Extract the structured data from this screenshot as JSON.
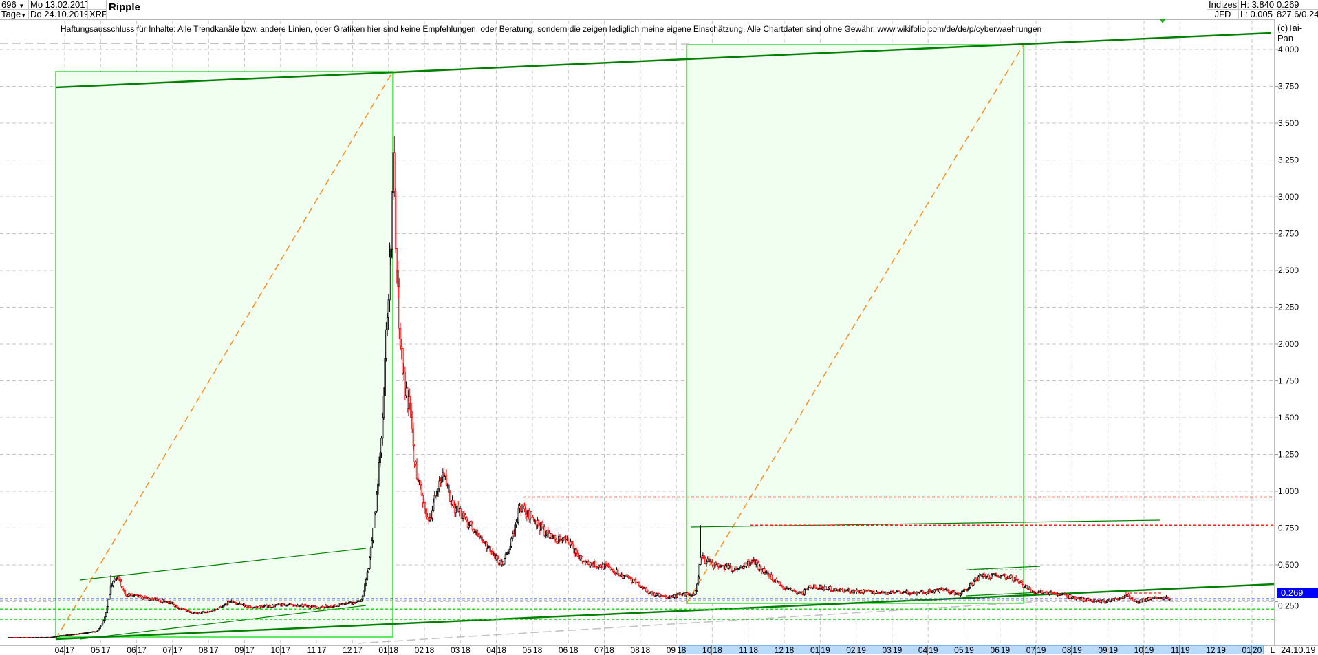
{
  "header": {
    "count": "696",
    "start_date": "Mo 13.02.2017",
    "period": "Tage",
    "end_date": "Do 24.10.2019",
    "symbol": "XRP",
    "title": "Ripple",
    "category": "Indizes",
    "source": "JFD",
    "high": "H: 3.840",
    "low": "L: 0.005",
    "last": "0.269",
    "extra": "827.6/0.24",
    "copyright": "(c)Tai-Pan"
  },
  "disclaimer": "Haftungsausschluss für Inhalte: Alle Trendkanäle bzw. andere Linien, oder Grafiken hier sind keine Empfehlungen, oder Beratung, sondern die zeigen lediglich meine eigene Einschätzung. Alle Chartdaten sind ohne Gewähr.  www.wikifolio.com/de/de/p/cyberwaehrungen",
  "footer": {
    "mode": "L",
    "date": "24.10.19"
  },
  "colors": {
    "up": "#000000",
    "down": "#ff0000",
    "trend": "#008000",
    "box_fill": "#f0fff0",
    "box_border": "#33dd33",
    "projection": "#ff8c1a",
    "resistance": "#ff2020",
    "support": "#22dd22",
    "last_price": "#0000ff"
  },
  "chart_data": {
    "type": "candlestick",
    "title": "Ripple",
    "ylim": [
      0,
      4.1
    ],
    "y_ticks": [
      "0.250",
      "0.500",
      "0.750",
      "1.000",
      "1.250",
      "1.500",
      "1.750",
      "2.000",
      "2.250",
      "2.500",
      "2.750",
      "3.000",
      "3.250",
      "3.500",
      "3.750",
      "4.000"
    ],
    "x_ticks": [
      "04 17",
      "05 17",
      "06 17",
      "07 17",
      "08 17",
      "09 17",
      "10 17",
      "11 17",
      "12 17",
      "01 18",
      "02 18",
      "03 18",
      "04 18",
      "05 18",
      "06 18",
      "07 18",
      "08 18",
      "09 18",
      "10 18",
      "11 18",
      "12 18",
      "01 19",
      "02 19",
      "03 19",
      "04 19",
      "05 19",
      "06 19",
      "07 19",
      "08 19",
      "09 19",
      "10 19",
      "11 19",
      "12 19",
      "01 20"
    ],
    "grid": true,
    "last_value": 0.269,
    "high": 3.84,
    "low": 0.005,
    "series": [
      {
        "date": "2017-02-13",
        "close": 0.007
      },
      {
        "date": "2017-03-20",
        "close": 0.008
      },
      {
        "date": "2017-03-28",
        "close": 0.02
      },
      {
        "date": "2017-04-15",
        "close": 0.035
      },
      {
        "date": "2017-04-28",
        "close": 0.05
      },
      {
        "date": "2017-05-02",
        "close": 0.09
      },
      {
        "date": "2017-05-10",
        "close": 0.36,
        "high": 0.43
      },
      {
        "date": "2017-05-16",
        "close": 0.42
      },
      {
        "date": "2017-05-22",
        "close": 0.3
      },
      {
        "date": "2017-06-05",
        "close": 0.28
      },
      {
        "date": "2017-06-27",
        "close": 0.25
      },
      {
        "date": "2017-07-18",
        "close": 0.17
      },
      {
        "date": "2017-08-01",
        "close": 0.18
      },
      {
        "date": "2017-08-19",
        "close": 0.25
      },
      {
        "date": "2017-09-06",
        "close": 0.21
      },
      {
        "date": "2017-10-07",
        "close": 0.23
      },
      {
        "date": "2017-11-02",
        "close": 0.21
      },
      {
        "date": "2017-11-27",
        "close": 0.24
      },
      {
        "date": "2017-12-07",
        "close": 0.25
      },
      {
        "date": "2017-12-12",
        "close": 0.4
      },
      {
        "date": "2017-12-18",
        "close": 0.75
      },
      {
        "date": "2017-12-22",
        "close": 1.05
      },
      {
        "date": "2017-12-28",
        "close": 1.9
      },
      {
        "date": "2017-12-31",
        "close": 2.3
      },
      {
        "date": "2018-01-04",
        "close": 3.3,
        "high": 3.84
      },
      {
        "date": "2018-01-07",
        "close": 2.5
      },
      {
        "date": "2018-01-12",
        "close": 1.8
      },
      {
        "date": "2018-01-19",
        "close": 1.5
      },
      {
        "date": "2018-01-22",
        "close": 1.2
      },
      {
        "date": "2018-02-03",
        "close": 0.8
      },
      {
        "date": "2018-02-10",
        "close": 1.0
      },
      {
        "date": "2018-02-16",
        "close": 1.1
      },
      {
        "date": "2018-02-24",
        "close": 0.9
      },
      {
        "date": "2018-03-07",
        "close": 0.8
      },
      {
        "date": "2018-03-22",
        "close": 0.65
      },
      {
        "date": "2018-04-05",
        "close": 0.5
      },
      {
        "date": "2018-04-12",
        "close": 0.6
      },
      {
        "date": "2018-04-21",
        "close": 0.9
      },
      {
        "date": "2018-05-04",
        "close": 0.8
      },
      {
        "date": "2018-05-18",
        "close": 0.68
      },
      {
        "date": "2018-06-01",
        "close": 0.65
      },
      {
        "date": "2018-06-15",
        "close": 0.52
      },
      {
        "date": "2018-07-06",
        "close": 0.48
      },
      {
        "date": "2018-07-28",
        "close": 0.38
      },
      {
        "date": "2018-08-11",
        "close": 0.3
      },
      {
        "date": "2018-08-25",
        "close": 0.28
      },
      {
        "date": "2018-09-05",
        "close": 0.3
      },
      {
        "date": "2018-09-16",
        "close": 0.3
      },
      {
        "date": "2018-09-21",
        "close": 0.55,
        "high": 0.77
      },
      {
        "date": "2018-10-01",
        "close": 0.5
      },
      {
        "date": "2018-10-21",
        "close": 0.47
      },
      {
        "date": "2018-11-04",
        "close": 0.53
      },
      {
        "date": "2018-11-15",
        "close": 0.45
      },
      {
        "date": "2018-11-29",
        "close": 0.35
      },
      {
        "date": "2018-12-16",
        "close": 0.3
      },
      {
        "date": "2018-12-22",
        "close": 0.36
      },
      {
        "date": "2019-01-15",
        "close": 0.33
      },
      {
        "date": "2019-02-19",
        "close": 0.31
      },
      {
        "date": "2019-03-24",
        "close": 0.31
      },
      {
        "date": "2019-04-15",
        "close": 0.33
      },
      {
        "date": "2019-04-29",
        "close": 0.3
      },
      {
        "date": "2019-05-14",
        "close": 0.42
      },
      {
        "date": "2019-05-20",
        "close": 0.42
      },
      {
        "date": "2019-06-04",
        "close": 0.43
      },
      {
        "date": "2019-06-15",
        "close": 0.4
      },
      {
        "date": "2019-06-29",
        "close": 0.32
      },
      {
        "date": "2019-07-16",
        "close": 0.31
      },
      {
        "date": "2019-08-07",
        "close": 0.27
      },
      {
        "date": "2019-08-28",
        "close": 0.25
      },
      {
        "date": "2019-09-18",
        "close": 0.29
      },
      {
        "date": "2019-09-25",
        "close": 0.25
      },
      {
        "date": "2019-10-10",
        "close": 0.28
      },
      {
        "date": "2019-10-24",
        "close": 0.269
      }
    ],
    "horizontal_levels": [
      {
        "value": 0.96,
        "kind": "resistance"
      },
      {
        "value": 0.77,
        "kind": "resistance"
      },
      {
        "value": 0.269,
        "kind": "last_price"
      },
      {
        "value": 0.2,
        "kind": "support"
      },
      {
        "value": 0.13,
        "kind": "support"
      }
    ]
  }
}
